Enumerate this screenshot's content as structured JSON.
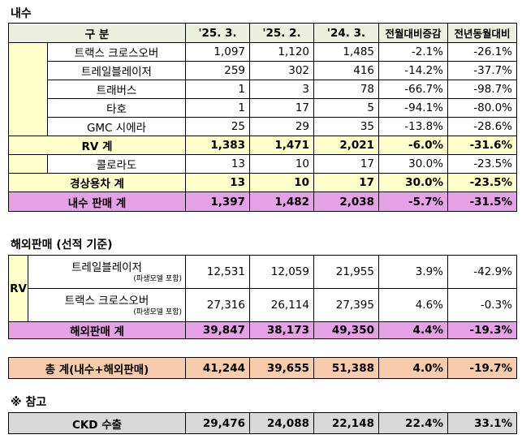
{
  "section1_title": "내수",
  "section2_title": "해외판매 (선적 기준)",
  "section3_title": "※ 참고",
  "headers": [
    "구 분",
    "'25. 3.",
    "'25. 2.",
    "'24. 3.",
    "전월대비증감",
    "전년동월대비"
  ],
  "domestic_rows": [
    {
      "name": "트랙스 크로스오버",
      "v1": "1,097",
      "v2": "1,120",
      "v3": "1,485",
      "mom": "-2.1%",
      "yoy": "-26.1%"
    },
    {
      "name": "트레일블레이저",
      "v1": "259",
      "v2": "302",
      "v3": "416",
      "mom": "-14.2%",
      "yoy": "-37.7%"
    },
    {
      "name": "트래버스",
      "v1": "1",
      "v2": "3",
      "v3": "78",
      "mom": "-66.7%",
      "yoy": "-98.7%"
    },
    {
      "name": "타호",
      "v1": "1",
      "v2": "17",
      "v3": "5",
      "mom": "-94.1%",
      "yoy": "-80.0%"
    },
    {
      "name": "GMC 시에라",
      "v1": "25",
      "v2": "29",
      "v3": "35",
      "mom": "-13.8%",
      "yoy": "-28.6%"
    }
  ],
  "rv_total": {
    "name": "RV 계",
    "v1": "1,383",
    "v2": "1,471",
    "v3": "2,021",
    "mom": "-6.0%",
    "yoy": "-31.6%"
  },
  "colorado": {
    "name": "콜로라도",
    "v1": "13",
    "v2": "10",
    "v3": "17",
    "mom": "30.0%",
    "yoy": "-23.5%"
  },
  "commercial_total": {
    "name": "경상용차 계",
    "v1": "13",
    "v2": "10",
    "v3": "17",
    "mom": "30.0%",
    "yoy": "-23.5%"
  },
  "domestic_total": {
    "name": "내수 판매 계",
    "v1": "1,397",
    "v2": "1,482",
    "v3": "2,038",
    "mom": "-5.7%",
    "yoy": "-31.5%"
  },
  "export_group_label": "RV",
  "export_rows": [
    {
      "name": "트레일블레이저",
      "note": "(파생모델 포함)",
      "v1": "12,531",
      "v2": "12,059",
      "v3": "21,955",
      "mom": "3.9%",
      "yoy": "-42.9%"
    },
    {
      "name": "트랙스 크로스오버",
      "note": "(파생모델 포함)",
      "v1": "27,316",
      "v2": "26,114",
      "v3": "27,395",
      "mom": "4.6%",
      "yoy": "-0.3%"
    }
  ],
  "export_total": {
    "name": "해외판매 계",
    "v1": "39,847",
    "v2": "38,173",
    "v3": "49,350",
    "mom": "4.4%",
    "yoy": "-19.3%"
  },
  "grand_total": {
    "name": "총 계(내수+해외판매)",
    "v1": "41,244",
    "v2": "39,655",
    "v3": "51,388",
    "mom": "4.0%",
    "yoy": "-19.7%"
  },
  "ckd": {
    "name": "CKD 수출",
    "v1": "29,476",
    "v2": "24,088",
    "v3": "22,148",
    "mom": "22.4%",
    "yoy": "33.1%"
  }
}
